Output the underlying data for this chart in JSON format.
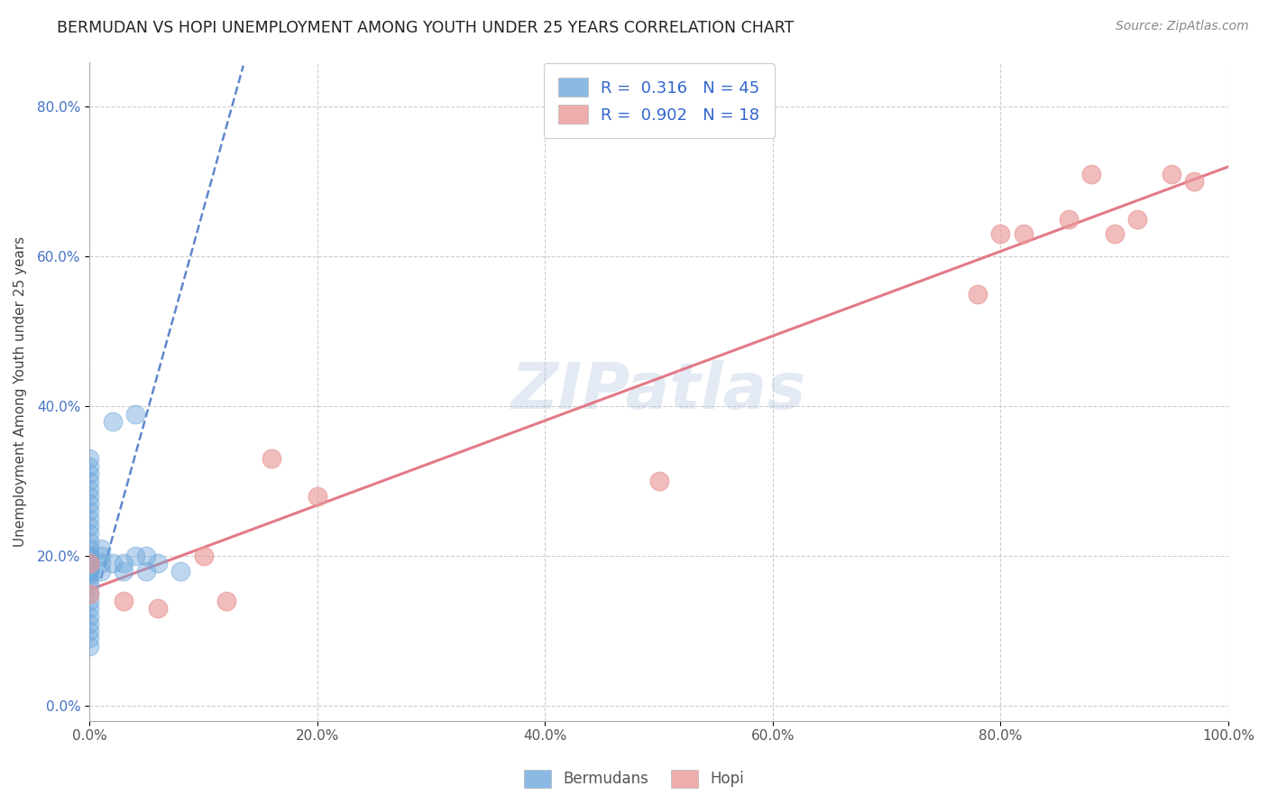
{
  "title": "BERMUDAN VS HOPI UNEMPLOYMENT AMONG YOUTH UNDER 25 YEARS CORRELATION CHART",
  "source": "Source: ZipAtlas.com",
  "ylabel": "Unemployment Among Youth under 25 years",
  "xlim": [
    0.0,
    1.0
  ],
  "ylim": [
    -0.02,
    0.86
  ],
  "x_ticks": [
    0.0,
    0.2,
    0.4,
    0.6,
    0.8,
    1.0
  ],
  "x_tick_labels": [
    "0.0%",
    "20.0%",
    "40.0%",
    "60.0%",
    "80.0%",
    "100.0%"
  ],
  "y_ticks": [
    0.0,
    0.2,
    0.4,
    0.6,
    0.8
  ],
  "y_tick_labels": [
    "0.0%",
    "20.0%",
    "40.0%",
    "60.0%",
    "80.0%"
  ],
  "legend_bottom": [
    "Bermudans",
    "Hopi"
  ],
  "R_bermuda": 0.316,
  "N_bermuda": 45,
  "R_hopi": 0.902,
  "N_hopi": 18,
  "bermuda_color": "#6fa8dc",
  "hopi_color": "#ea9999",
  "bermuda_line_color": "#4472c4",
  "hopi_line_color": "#e06c7a",
  "watermark": "ZIPatlas",
  "bermuda_scatter_x": [
    0.0,
    0.0,
    0.0,
    0.0,
    0.0,
    0.0,
    0.0,
    0.0,
    0.0,
    0.0,
    0.0,
    0.0,
    0.0,
    0.0,
    0.0,
    0.0,
    0.0,
    0.0,
    0.0,
    0.0,
    0.0,
    0.0,
    0.0,
    0.0,
    0.0,
    0.0,
    0.0,
    0.0,
    0.0,
    0.0,
    0.0,
    0.01,
    0.01,
    0.01,
    0.01,
    0.02,
    0.02,
    0.03,
    0.03,
    0.04,
    0.04,
    0.05,
    0.05,
    0.06,
    0.08
  ],
  "bermuda_scatter_y": [
    0.1,
    0.11,
    0.12,
    0.13,
    0.14,
    0.15,
    0.16,
    0.17,
    0.175,
    0.18,
    0.18,
    0.18,
    0.19,
    0.19,
    0.2,
    0.2,
    0.21,
    0.22,
    0.23,
    0.24,
    0.25,
    0.26,
    0.27,
    0.28,
    0.29,
    0.3,
    0.31,
    0.32,
    0.33,
    0.09,
    0.08,
    0.18,
    0.19,
    0.2,
    0.21,
    0.19,
    0.38,
    0.18,
    0.19,
    0.2,
    0.39,
    0.18,
    0.2,
    0.19,
    0.18
  ],
  "hopi_scatter_x": [
    0.0,
    0.0,
    0.03,
    0.06,
    0.1,
    0.12,
    0.16,
    0.2,
    0.5,
    0.78,
    0.8,
    0.82,
    0.86,
    0.88,
    0.9,
    0.92,
    0.95,
    0.97
  ],
  "hopi_scatter_y": [
    0.15,
    0.19,
    0.14,
    0.13,
    0.2,
    0.14,
    0.33,
    0.28,
    0.3,
    0.55,
    0.63,
    0.63,
    0.65,
    0.71,
    0.63,
    0.65,
    0.71,
    0.7
  ],
  "hopi_line_x0": 0.0,
  "hopi_line_y0": 0.155,
  "hopi_line_x1": 1.0,
  "hopi_line_y1": 0.72,
  "bermuda_line_x0": 0.01,
  "bermuda_line_y0": 0.17,
  "bermuda_line_x1": 0.135,
  "bermuda_line_y1": 0.855
}
